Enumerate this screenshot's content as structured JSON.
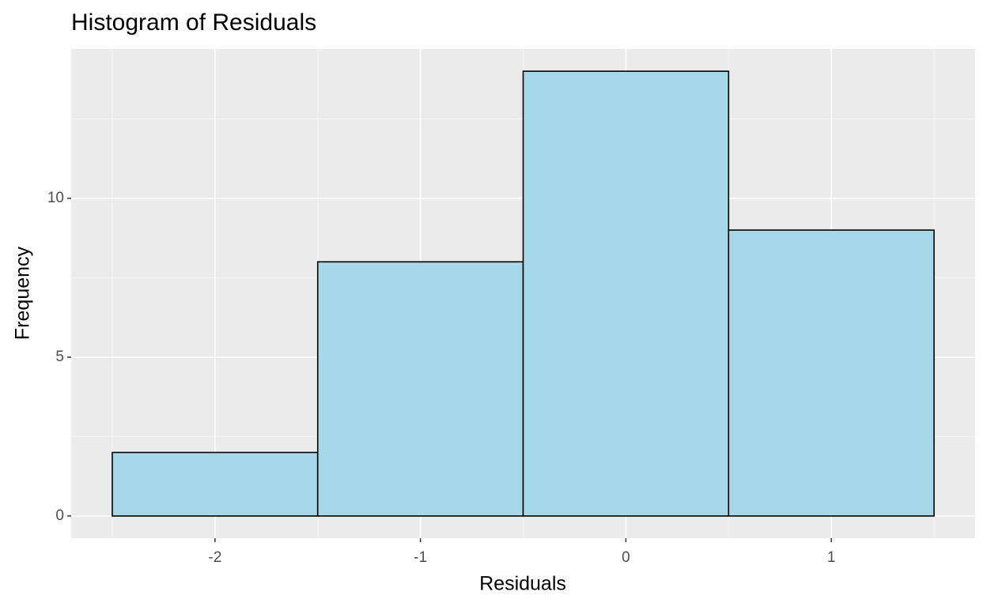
{
  "chart_data": {
    "type": "histogram",
    "title": "Histogram of Residuals",
    "x_label": "Residuals",
    "y_label": "Frequency",
    "bins": [
      -2.5,
      -1.5,
      -0.5,
      0.5,
      1.5
    ],
    "values": [
      2,
      8,
      14,
      9
    ],
    "color": "#a6d8ea",
    "edge_color": "#000000",
    "xlim": [
      -2.7,
      1.7
    ],
    "xticks": [
      -2,
      -1,
      0,
      1
    ],
    "xminor": [
      -2.5,
      -1.5,
      -0.5,
      0.5,
      1.5
    ],
    "ylim": [
      -0.7,
      14.7
    ],
    "yticks": [
      0,
      5,
      10
    ],
    "yminor": [
      2.5,
      7.5,
      12.5
    ],
    "grid": true
  }
}
